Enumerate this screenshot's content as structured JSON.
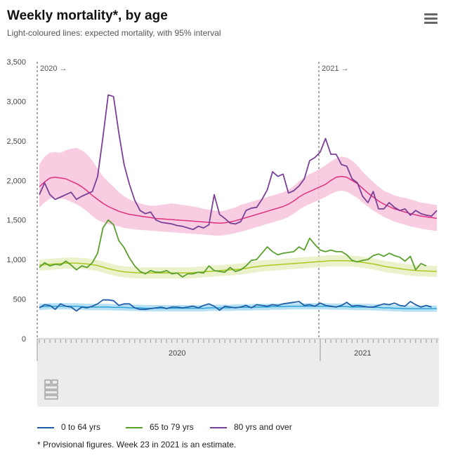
{
  "header": {
    "title": "Weekly mortality*, by age",
    "subtitle": "Light-coloured lines: expected mortality, with 95% interval",
    "menu_icon": "hamburger-menu-icon"
  },
  "footnote": "* Provisional figures. Week 23 in 2021 is an estimate.",
  "logo": "cbs-logo-icon",
  "colors": {
    "young": "#1f5fa8",
    "mid": "#5aa02c",
    "old": "#7b3f98",
    "young_expected": "#2ea3d8",
    "mid_expected": "#aac820",
    "old_expected": "#e0307f",
    "young_band": "#a9dcf2",
    "mid_band": "#e6eec2",
    "old_band": "#f7c3dc"
  },
  "chart_data": {
    "type": "line",
    "title": "Weekly mortality*, by age",
    "subtitle": "Light-coloured lines: expected mortality, with 95% interval",
    "x_unit": "week",
    "x": [
      1,
      2,
      3,
      4,
      5,
      6,
      7,
      8,
      9,
      10,
      11,
      12,
      13,
      14,
      15,
      16,
      17,
      18,
      19,
      20,
      21,
      22,
      23,
      24,
      25,
      26,
      27,
      28,
      29,
      30,
      31,
      32,
      33,
      34,
      35,
      36,
      37,
      38,
      39,
      40,
      41,
      42,
      43,
      44,
      45,
      46,
      47,
      48,
      49,
      50,
      51,
      52,
      53,
      54,
      55,
      56,
      57,
      58,
      59,
      60,
      61,
      62,
      63,
      64,
      65,
      66,
      67,
      68,
      69,
      70,
      71,
      72,
      73,
      74,
      75,
      76
    ],
    "x_range": [
      1,
      76
    ],
    "year_markers": [
      {
        "label": "2020 →",
        "week": 1
      },
      {
        "label": "2021 →",
        "week": 54
      }
    ],
    "x_tick_labels": [
      {
        "label": "2020",
        "week": 27
      },
      {
        "label": "2021",
        "week": 62
      }
    ],
    "ylim": [
      0,
      3500
    ],
    "y_ticks": [
      0,
      500,
      1000,
      1500,
      2000,
      2500,
      3000,
      3500
    ],
    "y_tick_labels": [
      "0",
      "500",
      "1,000",
      "1,500",
      "2,000",
      "2,500",
      "3,000",
      "3,500"
    ],
    "grid": false,
    "legend_position": "bottom-left",
    "series": [
      {
        "name": "0 to 64 yrs",
        "values": [
          390,
          430,
          420,
          370,
          440,
          410,
          400,
          350,
          400,
          390,
          410,
          440,
          490,
          490,
          480,
          420,
          440,
          440,
          390,
          370,
          370,
          380,
          390,
          400,
          380,
          400,
          400,
          390,
          400,
          410,
          390,
          420,
          440,
          410,
          360,
          410,
          400,
          390,
          400,
          420,
          390,
          430,
          420,
          410,
          430,
          420,
          440,
          450,
          460,
          470,
          420,
          430,
          410,
          450,
          420,
          410,
          400,
          420,
          460,
          410,
          420,
          410,
          400,
          400,
          420,
          440,
          430,
          450,
          420,
          410,
          470,
          430,
          400,
          420,
          400,
          null
        ],
        "expected": [
          400,
          405,
          410,
          410,
          410,
          410,
          410,
          410,
          405,
          400,
          400,
          400,
          400,
          400,
          395,
          395,
          395,
          390,
          390,
          390,
          385,
          385,
          385,
          385,
          385,
          385,
          385,
          385,
          385,
          385,
          385,
          385,
          390,
          390,
          390,
          390,
          390,
          395,
          395,
          395,
          395,
          400,
          400,
          400,
          405,
          405,
          405,
          410,
          410,
          410,
          410,
          410,
          410,
          410,
          410,
          405,
          405,
          405,
          405,
          400,
          400,
          400,
          400,
          395,
          395,
          390,
          390,
          385,
          385,
          380,
          380,
          380,
          380,
          380,
          380,
          380
        ],
        "lower": [
          360,
          365,
          370,
          370,
          370,
          370,
          370,
          370,
          365,
          360,
          360,
          360,
          360,
          360,
          355,
          355,
          355,
          350,
          350,
          350,
          345,
          345,
          345,
          345,
          345,
          345,
          345,
          345,
          345,
          345,
          345,
          345,
          350,
          350,
          350,
          350,
          350,
          355,
          355,
          355,
          355,
          360,
          360,
          360,
          365,
          365,
          365,
          370,
          370,
          370,
          370,
          370,
          370,
          370,
          370,
          365,
          365,
          365,
          365,
          360,
          360,
          360,
          360,
          355,
          355,
          350,
          350,
          345,
          345,
          340,
          340,
          340,
          340,
          340,
          340,
          340
        ],
        "upper": [
          440,
          445,
          450,
          450,
          450,
          450,
          450,
          450,
          445,
          440,
          440,
          440,
          440,
          440,
          435,
          435,
          435,
          430,
          430,
          430,
          425,
          425,
          425,
          425,
          425,
          425,
          425,
          425,
          425,
          425,
          425,
          425,
          430,
          430,
          430,
          430,
          430,
          435,
          435,
          435,
          435,
          440,
          440,
          440,
          445,
          445,
          445,
          450,
          450,
          450,
          450,
          450,
          450,
          450,
          450,
          445,
          445,
          445,
          445,
          440,
          440,
          440,
          440,
          435,
          435,
          430,
          430,
          425,
          425,
          420,
          420,
          420,
          420,
          420,
          420,
          420
        ]
      },
      {
        "name": "65 to 79 yrs",
        "values": [
          900,
          960,
          920,
          940,
          930,
          980,
          930,
          870,
          920,
          900,
          960,
          1080,
          1400,
          1500,
          1440,
          1240,
          1150,
          1020,
          920,
          850,
          820,
          860,
          840,
          840,
          860,
          820,
          830,
          780,
          820,
          820,
          840,
          830,
          920,
          860,
          850,
          840,
          900,
          850,
          870,
          920,
          990,
          1000,
          1080,
          1160,
          1100,
          1060,
          1080,
          1090,
          1100,
          1160,
          1120,
          1270,
          1190,
          1120,
          1100,
          1120,
          1100,
          1100,
          1060,
          990,
          970,
          990,
          1000,
          1050,
          1070,
          1040,
          1080,
          1050,
          1030,
          980,
          1040,
          870,
          950,
          920,
          null,
          null
        ],
        "expected": [
          930,
          935,
          940,
          945,
          950,
          955,
          955,
          955,
          950,
          945,
          935,
          925,
          905,
          885,
          870,
          855,
          845,
          840,
          835,
          830,
          830,
          830,
          830,
          830,
          830,
          830,
          830,
          830,
          830,
          835,
          840,
          845,
          850,
          855,
          860,
          865,
          870,
          875,
          880,
          890,
          900,
          910,
          920,
          925,
          930,
          935,
          940,
          945,
          950,
          955,
          960,
          965,
          970,
          975,
          980,
          985,
          985,
          985,
          985,
          980,
          975,
          965,
          955,
          945,
          930,
          915,
          905,
          895,
          885,
          875,
          868,
          862,
          858,
          855,
          852,
          850
        ],
        "lower": [
          860,
          865,
          870,
          875,
          880,
          885,
          885,
          885,
          880,
          875,
          865,
          855,
          835,
          815,
          800,
          785,
          775,
          770,
          765,
          760,
          760,
          760,
          760,
          760,
          760,
          760,
          760,
          760,
          760,
          765,
          770,
          775,
          780,
          785,
          790,
          795,
          800,
          805,
          810,
          820,
          830,
          840,
          850,
          855,
          860,
          865,
          870,
          875,
          880,
          885,
          890,
          895,
          900,
          905,
          910,
          915,
          915,
          915,
          915,
          910,
          905,
          895,
          885,
          875,
          860,
          845,
          835,
          825,
          815,
          805,
          798,
          792,
          788,
          785,
          782,
          780
        ],
        "upper": [
          1000,
          1005,
          1010,
          1015,
          1020,
          1025,
          1025,
          1025,
          1020,
          1015,
          1005,
          995,
          975,
          955,
          940,
          925,
          915,
          910,
          905,
          900,
          900,
          900,
          900,
          900,
          900,
          900,
          900,
          900,
          900,
          905,
          910,
          915,
          920,
          925,
          930,
          935,
          940,
          945,
          950,
          960,
          970,
          980,
          990,
          995,
          1000,
          1005,
          1010,
          1015,
          1020,
          1025,
          1030,
          1035,
          1040,
          1045,
          1050,
          1055,
          1055,
          1055,
          1055,
          1050,
          1045,
          1035,
          1025,
          1015,
          1000,
          985,
          975,
          965,
          955,
          945,
          938,
          932,
          928,
          925,
          922,
          920
        ]
      },
      {
        "name": "80 yrs and over",
        "values": [
          1820,
          1970,
          1820,
          1760,
          1790,
          1820,
          1850,
          1760,
          1800,
          1830,
          1860,
          2050,
          2550,
          3080,
          3060,
          2600,
          2200,
          1950,
          1750,
          1620,
          1580,
          1600,
          1500,
          1470,
          1460,
          1450,
          1430,
          1420,
          1400,
          1380,
          1420,
          1400,
          1440,
          1820,
          1570,
          1520,
          1460,
          1450,
          1480,
          1620,
          1650,
          1660,
          1760,
          1880,
          2110,
          2050,
          2080,
          1840,
          1870,
          1930,
          2020,
          2250,
          2290,
          2360,
          2530,
          2330,
          2330,
          2200,
          2180,
          2020,
          1970,
          1800,
          1720,
          1860,
          1640,
          1640,
          1720,
          1660,
          1620,
          1640,
          1560,
          1620,
          1580,
          1560,
          1550,
          1620
        ]
      }
    ],
    "expected_old": [
      1920,
      1980,
      2030,
      2040,
      2030,
      2020,
      1990,
      1960,
      1920,
      1870,
      1810,
      1760,
      1710,
      1670,
      1640,
      1610,
      1590,
      1570,
      1560,
      1550,
      1540,
      1530,
      1520,
      1515,
      1510,
      1505,
      1500,
      1495,
      1490,
      1485,
      1480,
      1475,
      1470,
      1465,
      1460,
      1465,
      1475,
      1490,
      1510,
      1530,
      1550,
      1570,
      1590,
      1610,
      1630,
      1650,
      1670,
      1700,
      1740,
      1790,
      1830,
      1860,
      1890,
      1920,
      1950,
      2000,
      2040,
      2050,
      2040,
      2000,
      1960,
      1900,
      1840,
      1790,
      1740,
      1700,
      1670,
      1640,
      1620,
      1600,
      1580,
      1565,
      1550,
      1540,
      1530,
      1520
    ],
    "lower_old": [
      1660,
      1720,
      1770,
      1780,
      1770,
      1760,
      1730,
      1700,
      1660,
      1610,
      1550,
      1500,
      1470,
      1450,
      1430,
      1420,
      1400,
      1390,
      1380,
      1375,
      1370,
      1365,
      1360,
      1355,
      1350,
      1345,
      1340,
      1335,
      1330,
      1325,
      1320,
      1315,
      1310,
      1305,
      1300,
      1310,
      1320,
      1335,
      1350,
      1370,
      1390,
      1410,
      1430,
      1450,
      1470,
      1490,
      1510,
      1540,
      1580,
      1630,
      1670,
      1700,
      1730,
      1760,
      1790,
      1830,
      1860,
      1870,
      1860,
      1820,
      1780,
      1720,
      1670,
      1620,
      1580,
      1540,
      1510,
      1480,
      1460,
      1440,
      1420,
      1405,
      1390,
      1380,
      1370,
      1360
    ],
    "upper_old": [
      2200,
      2300,
      2350,
      2360,
      2350,
      2380,
      2400,
      2410,
      2380,
      2330,
      2250,
      2150,
      2050,
      1980,
      1920,
      1850,
      1800,
      1760,
      1730,
      1710,
      1690,
      1680,
      1680,
      1690,
      1700,
      1710,
      1700,
      1690,
      1680,
      1670,
      1660,
      1640,
      1630,
      1620,
      1610,
      1620,
      1640,
      1660,
      1690,
      1710,
      1730,
      1750,
      1770,
      1790,
      1810,
      1830,
      1850,
      1880,
      1930,
      1990,
      2040,
      2080,
      2110,
      2150,
      2190,
      2240,
      2280,
      2300,
      2290,
      2250,
      2190,
      2110,
      2040,
      1980,
      1920,
      1870,
      1840,
      1810,
      1790,
      1780,
      1760,
      1740,
      1720,
      1710,
      1700,
      1690
    ]
  },
  "legend": [
    {
      "label": "0 to 64 yrs",
      "color": "#1f5fa8"
    },
    {
      "label": "65 to 79 yrs",
      "color": "#5aa02c"
    },
    {
      "label": "80 yrs and over",
      "color": "#7b3f98"
    }
  ]
}
